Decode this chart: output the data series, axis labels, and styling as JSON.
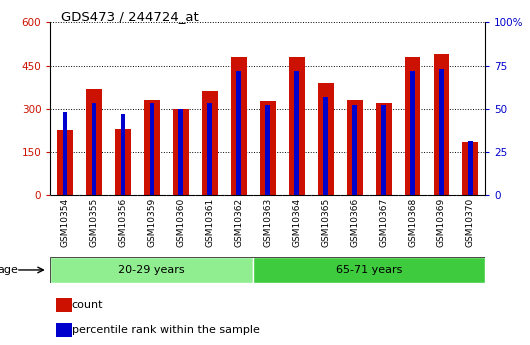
{
  "title": "GDS473 / 244724_at",
  "samples": [
    "GSM10354",
    "GSM10355",
    "GSM10356",
    "GSM10359",
    "GSM10360",
    "GSM10361",
    "GSM10362",
    "GSM10363",
    "GSM10364",
    "GSM10365",
    "GSM10366",
    "GSM10367",
    "GSM10368",
    "GSM10369",
    "GSM10370"
  ],
  "counts": [
    225,
    370,
    230,
    330,
    300,
    360,
    480,
    325,
    480,
    390,
    330,
    320,
    480,
    490,
    185
  ],
  "percentile_ranks": [
    48,
    53,
    47,
    53,
    50,
    53,
    72,
    52,
    72,
    57,
    52,
    52,
    72,
    73,
    31
  ],
  "groups": [
    {
      "label": "20-29 years",
      "start": 0,
      "end": 7,
      "color": "#90EE90"
    },
    {
      "label": "65-71 years",
      "start": 7,
      "end": 15,
      "color": "#3ECC3E"
    }
  ],
  "age_label": "age",
  "ylim_left": [
    0,
    600
  ],
  "ylim_right": [
    0,
    100
  ],
  "yticks_left": [
    0,
    150,
    300,
    450,
    600
  ],
  "yticks_right": [
    0,
    25,
    50,
    75,
    100
  ],
  "count_color": "#CC1100",
  "percentile_color": "#0000CC",
  "bar_width": 0.55,
  "plot_bg": "#ffffff",
  "tick_bg": "#d8d8d8",
  "legend_count_label": "count",
  "legend_pct_label": "percentile rank within the sample"
}
